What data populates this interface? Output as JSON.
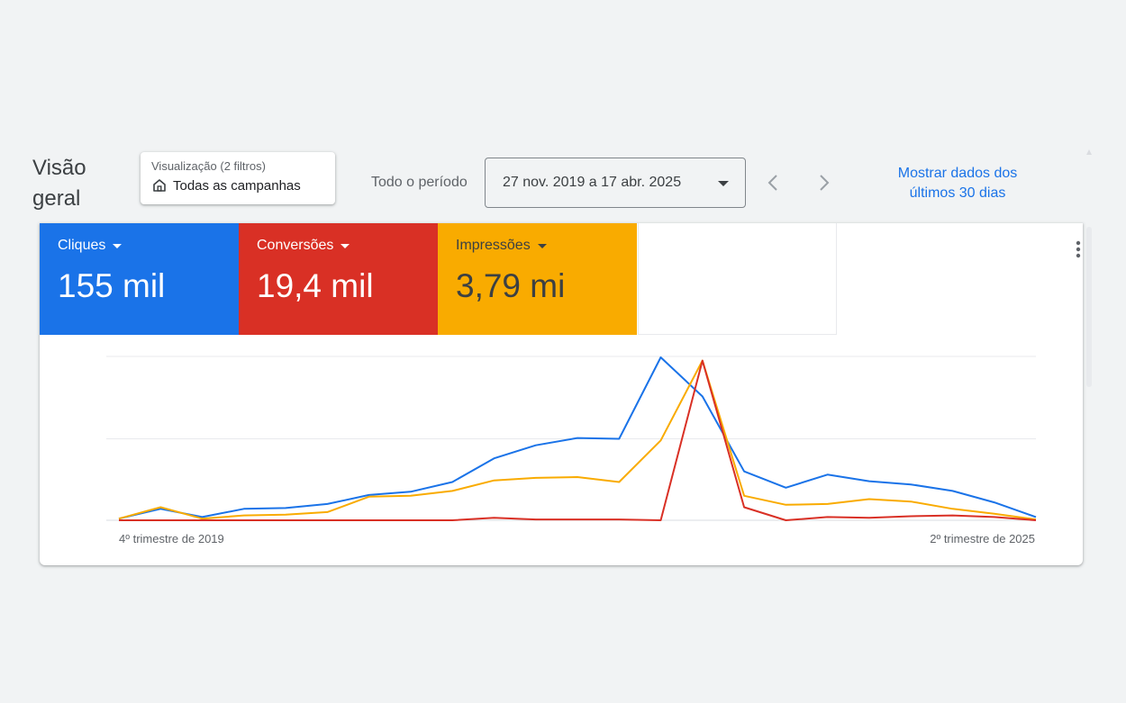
{
  "header": {
    "title": "Visão geral",
    "filter_caption": "Visualização (2 filtros)",
    "filter_value": "Todas as campanhas",
    "period_label": "Todo o período",
    "date_range": "27 nov. 2019 a 17 abr. 2025",
    "last30_link": "Mostrar dados dos últimos 30 dias"
  },
  "metrics": [
    {
      "label": "Cliques",
      "value": "155 mil",
      "color": "#1a73e8"
    },
    {
      "label": "Conversões",
      "value": "19,4 mil",
      "color": "#d93025"
    },
    {
      "label": "Impressões",
      "value": "3,79 mi",
      "color": "#f9ab00"
    }
  ],
  "icons": {
    "filter": "campaign-home-icon",
    "dropdown": "caret-down-icon",
    "prev": "chevron-left-icon",
    "next": "chevron-right-icon",
    "more": "more-vertical-icon"
  },
  "chart_data": {
    "type": "line",
    "x_first_label": "4º trimestre de 2019",
    "x_last_label": "2º trimestre de 2025",
    "grid": true,
    "ylim": [
      0,
      100
    ],
    "x": [
      0,
      1,
      2,
      3,
      4,
      5,
      6,
      7,
      8,
      9,
      10,
      11,
      12,
      13,
      14,
      15,
      16,
      17,
      18,
      19,
      20,
      21,
      22
    ],
    "series": [
      {
        "key": "clicks",
        "color": "#1a73e8",
        "values": [
          1,
          7,
          2,
          7,
          7.5,
          10,
          15.5,
          17.5,
          23.5,
          38,
          46,
          50.5,
          50,
          100,
          76,
          30,
          20,
          28,
          24,
          22,
          18,
          11,
          2
        ]
      },
      {
        "key": "conversions",
        "color": "#d93025",
        "values": [
          0,
          0,
          0,
          0,
          0,
          0,
          0,
          0,
          0,
          1.5,
          0.5,
          0.5,
          0.5,
          0,
          98,
          8,
          0,
          2,
          1.5,
          2.5,
          3,
          2,
          0
        ]
      },
      {
        "key": "impressions",
        "color": "#f9ab00",
        "values": [
          1,
          8,
          1,
          3,
          3.5,
          5,
          14.5,
          15,
          18,
          24.5,
          26,
          26.5,
          23.5,
          49,
          98,
          15,
          9.5,
          10,
          13,
          11.5,
          7,
          4,
          0.5
        ]
      }
    ]
  }
}
